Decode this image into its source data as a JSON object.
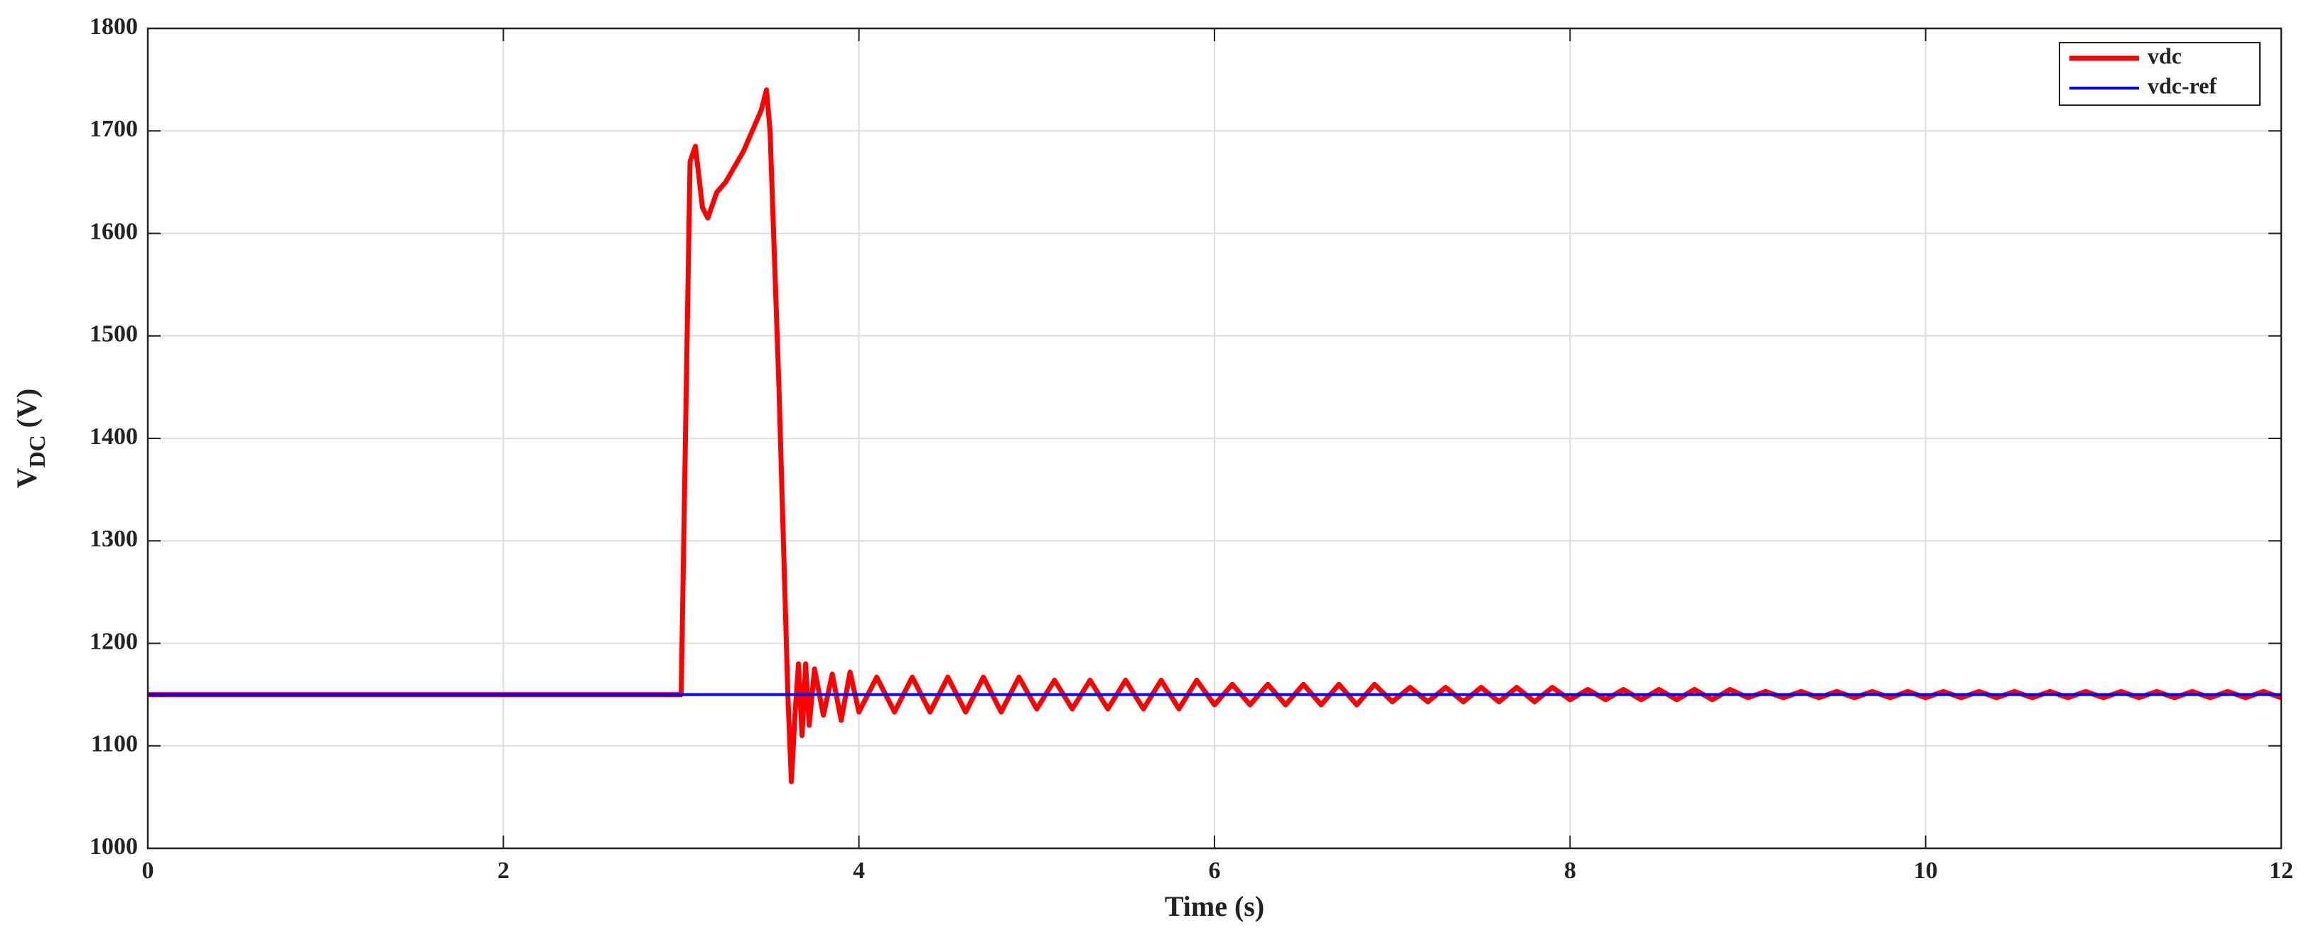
{
  "chart_data": {
    "type": "line",
    "x_label": "Time (s)",
    "y_label": {
      "text": "V",
      "subscript": "DC",
      "unit": "(V)"
    },
    "xlim": [
      0,
      12
    ],
    "xticks": [
      0,
      2,
      4,
      6,
      8,
      10,
      12
    ],
    "ylim": [
      1000,
      1800
    ],
    "yticks": [
      1000,
      1100,
      1200,
      1300,
      1400,
      1500,
      1600,
      1700,
      1800
    ],
    "grid": true,
    "legend": "upper right",
    "series": [
      {
        "name": "vdc",
        "color": "#ff0000",
        "x": [
          0,
          2.98,
          3.0,
          3.05,
          3.08,
          3.12,
          3.15,
          3.2,
          3.25,
          3.3,
          3.35,
          3.4,
          3.45,
          3.48,
          3.5,
          3.55,
          3.6,
          3.62,
          3.64,
          3.66,
          3.68,
          3.7,
          3.72,
          3.75,
          3.8,
          3.85,
          3.9,
          3.95,
          4.0,
          4.1,
          4.2,
          4.3,
          4.4,
          4.5,
          4.6,
          4.7,
          4.8,
          4.9,
          5.0,
          5.1,
          5.2,
          5.3,
          5.4,
          5.5,
          5.6,
          5.7,
          5.8,
          5.9,
          6.0,
          6.1,
          6.2,
          6.3,
          6.4,
          6.5,
          6.6,
          6.7,
          6.8,
          6.9,
          7.0,
          7.1,
          7.2,
          7.3,
          7.4,
          7.5,
          7.6,
          7.7,
          7.8,
          7.9,
          8.0,
          8.1,
          8.2,
          8.3,
          8.4,
          8.5,
          8.6,
          8.7,
          8.8,
          8.9,
          9.0,
          9.1,
          9.2,
          9.3,
          9.4,
          9.5,
          9.6,
          9.7,
          9.8,
          9.9,
          10.0,
          10.1,
          10.2,
          10.3,
          10.4,
          10.5,
          10.6,
          10.7,
          10.8,
          10.9,
          11.0,
          11.1,
          11.2,
          11.3,
          11.4,
          11.5,
          11.6,
          11.7,
          11.8,
          11.9,
          12.0
        ],
        "values": [
          1150,
          1150,
          1150,
          1670,
          1685,
          1625,
          1615,
          1640,
          1650,
          1665,
          1680,
          1700,
          1720,
          1740,
          1700,
          1450,
          1150,
          1065,
          1130,
          1180,
          1110,
          1180,
          1120,
          1175,
          1130,
          1170,
          1125,
          1172,
          1133,
          1167,
          1133,
          1167,
          1133,
          1167,
          1133,
          1167,
          1133,
          1167,
          1136,
          1164,
          1136,
          1164,
          1136,
          1164,
          1136,
          1164,
          1136,
          1164,
          1140,
          1160,
          1140,
          1160,
          1140,
          1160,
          1140,
          1160,
          1140,
          1160,
          1143,
          1157,
          1143,
          1157,
          1143,
          1157,
          1143,
          1157,
          1143,
          1157,
          1145,
          1155,
          1145,
          1155,
          1145,
          1155,
          1145,
          1155,
          1145,
          1155,
          1147,
          1153,
          1147,
          1153,
          1147,
          1153,
          1147,
          1153,
          1147,
          1153,
          1147,
          1153,
          1147,
          1153,
          1147,
          1153,
          1147,
          1153,
          1147,
          1153,
          1147,
          1153,
          1147,
          1153,
          1147,
          1153,
          1147,
          1153,
          1147,
          1153,
          1147
        ]
      },
      {
        "name": "vdc-ref",
        "color": "#0000ff",
        "x": [
          0,
          12
        ],
        "values": [
          1150,
          1150
        ]
      }
    ]
  }
}
